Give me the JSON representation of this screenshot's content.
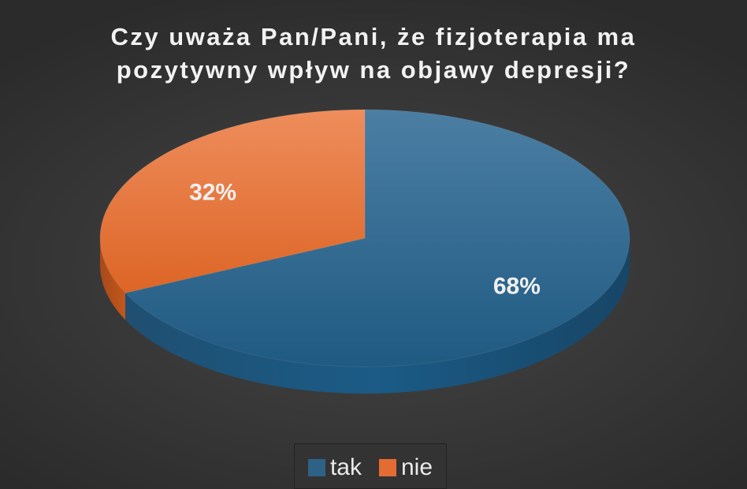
{
  "chart_data": {
    "type": "pie",
    "title": [
      "Czy uważa Pan/Pani, że fizjoterapia ma",
      "pozytywny wpływ na objawy depresji?"
    ],
    "categories": [
      "tak",
      "nie"
    ],
    "values": [
      68,
      32
    ],
    "data_labels": [
      "68%",
      "32%"
    ],
    "colors": [
      "#2e6186",
      "#e46c32"
    ],
    "legend": "bottom",
    "style": "3d"
  }
}
